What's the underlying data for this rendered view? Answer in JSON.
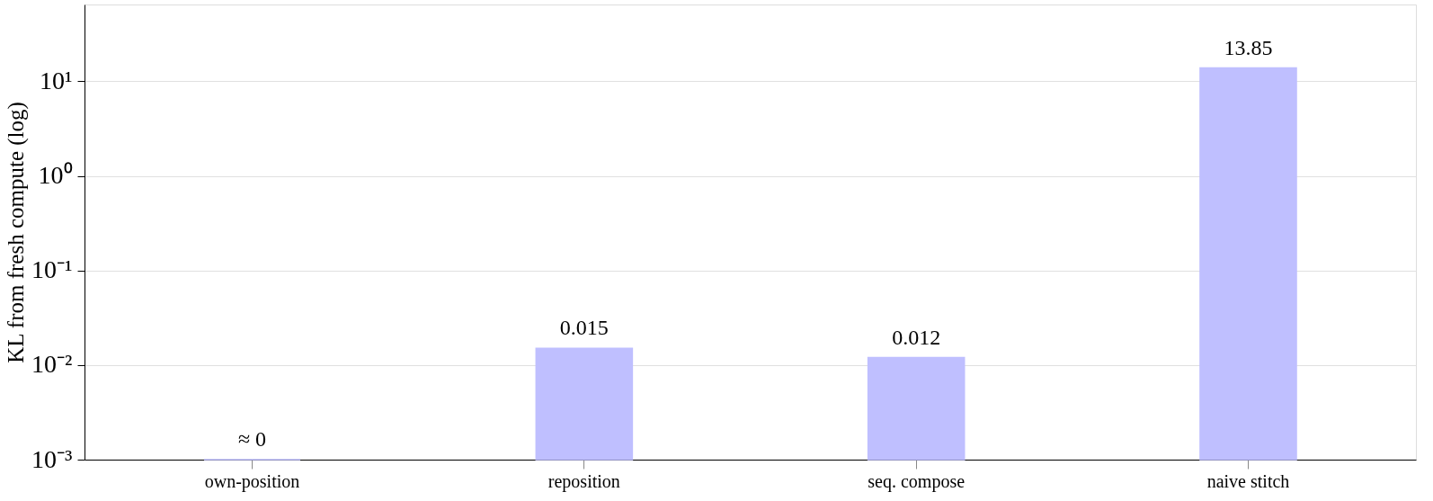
{
  "chart_data": {
    "type": "bar",
    "ylabel": "KL from fresh compute (log)",
    "categories": [
      "own-position",
      "reposition",
      "seq. compose",
      "naive stitch"
    ],
    "series": [
      {
        "color": "#bfbfff",
        "values": [
          0.001,
          0.015,
          0.012,
          13.85
        ],
        "value_labels": [
          "≈ 0",
          "0.015",
          "0.012",
          "13.85"
        ]
      }
    ],
    "log": true,
    "ylim": [
      0.001,
      65
    ],
    "yticks": [
      {
        "value": 0.001,
        "label": "10⁻³"
      },
      {
        "value": 0.01,
        "label": "10⁻²"
      },
      {
        "value": 0.1,
        "label": "10⁻¹"
      },
      {
        "value": 1,
        "label": "10⁰"
      },
      {
        "value": 10,
        "label": "10¹"
      }
    ],
    "grid": "y",
    "legend": false
  }
}
